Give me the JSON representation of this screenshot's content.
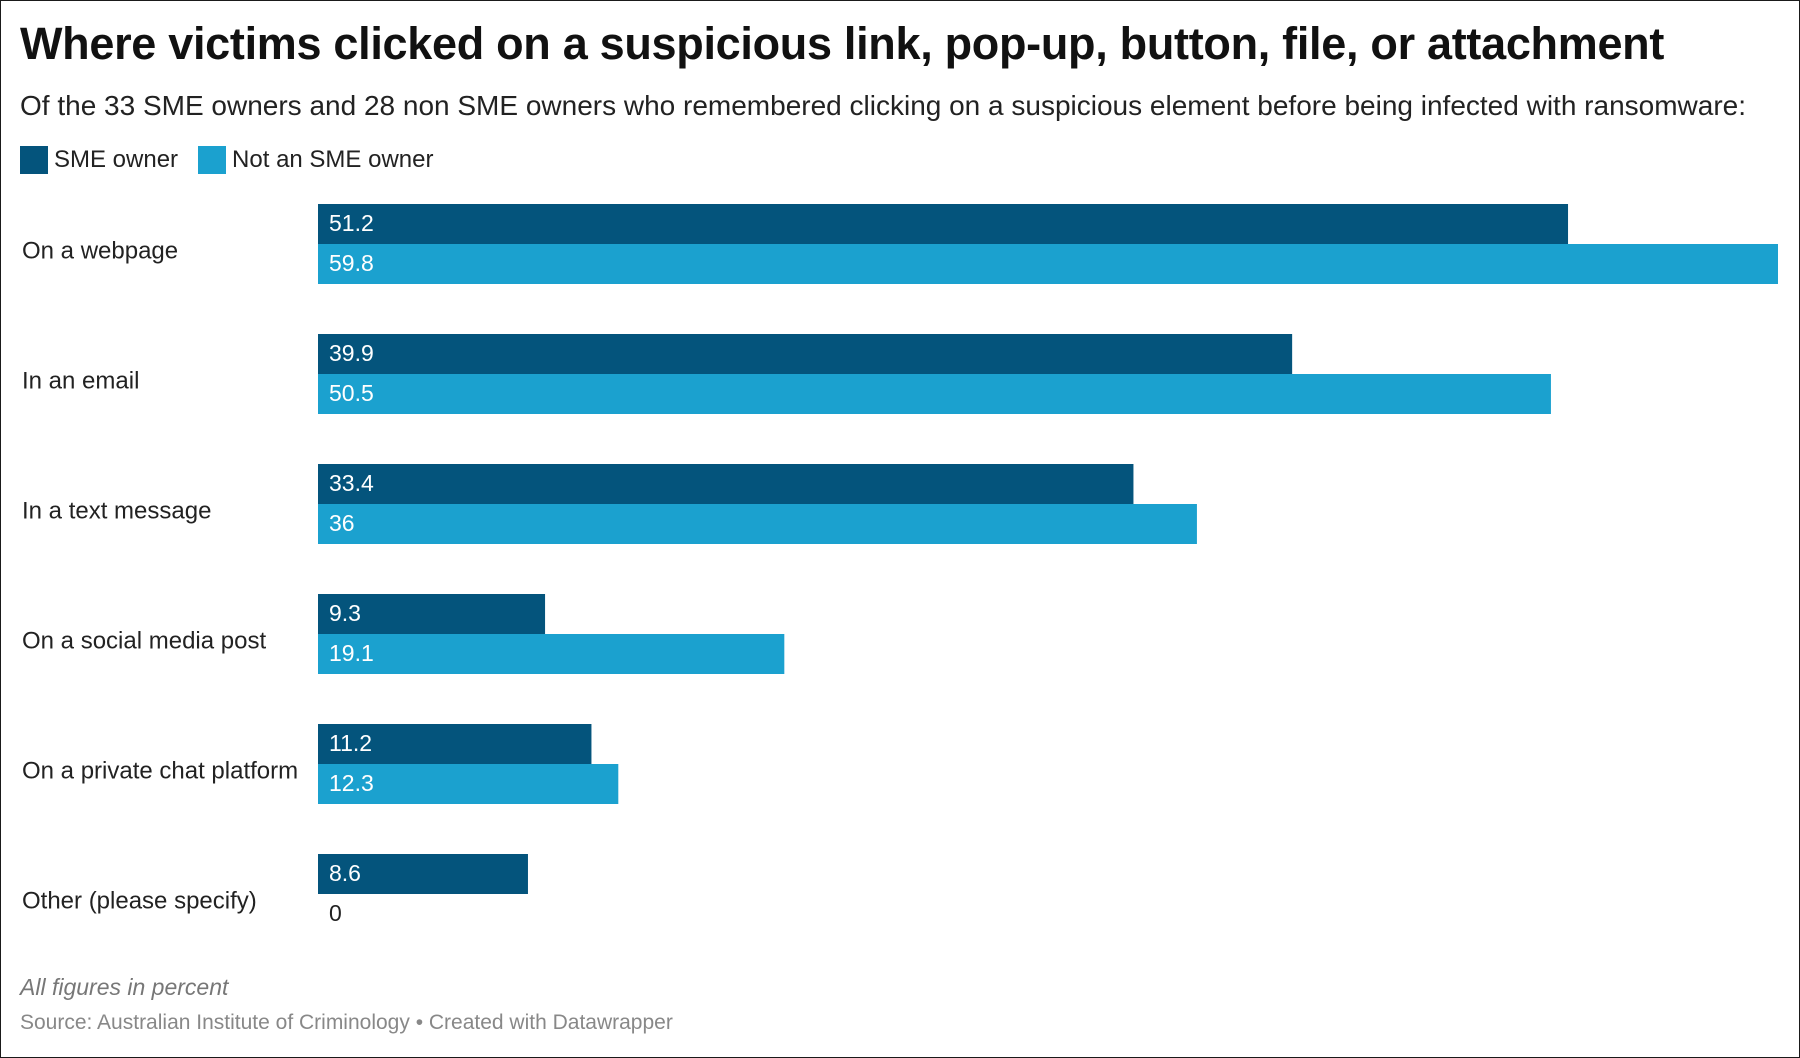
{
  "title": "Where victims clicked on a suspicious link, pop-up, button, file, or attachment",
  "subtitle": "Of the 33 SME owners and 28 non SME owners who remembered clicking on a suspicious element before being infected with ransomware:",
  "note": "All figures in percent",
  "source": "Source: Australian Institute of Criminology • Created with Datawrapper",
  "colors": {
    "sme": "#04547c",
    "non_sme": "#1ba1cf"
  },
  "chart_data": {
    "type": "bar",
    "orientation": "horizontal",
    "categories": [
      "On a webpage",
      "In an email",
      "In a text message",
      "On a social media post",
      "On a private chat platform",
      "Other (please specify)"
    ],
    "series": [
      {
        "name": "SME owner",
        "values": [
          51.2,
          39.9,
          33.4,
          9.3,
          11.2,
          8.6
        ]
      },
      {
        "name": "Not an SME owner",
        "values": [
          59.8,
          50.5,
          36,
          19.1,
          12.3,
          0
        ]
      }
    ],
    "xlim": [
      0,
      59.8
    ],
    "legend": "top-left",
    "grid": false
  }
}
